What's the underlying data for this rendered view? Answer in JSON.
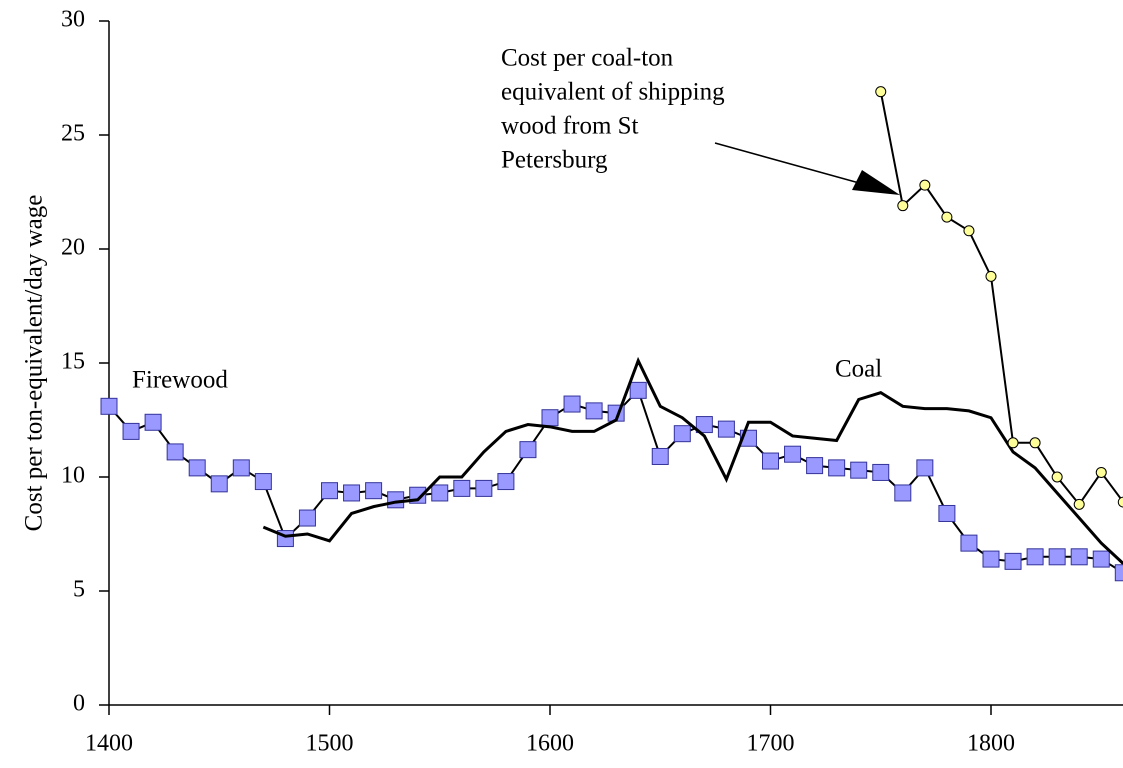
{
  "chart_data": {
    "type": "line",
    "y_label": "Cost per ton-equivalent/day wage",
    "xlim": [
      1400,
      1860
    ],
    "xticks": [
      1400,
      1500,
      1600,
      1700,
      1800
    ],
    "ylim": [
      0,
      30
    ],
    "yticks": [
      0,
      5,
      10,
      15,
      20,
      25,
      30
    ],
    "grid": false,
    "series": [
      {
        "name": "Firewood",
        "color": "#9999ff",
        "marker": "square",
        "x": [
          1400,
          1410,
          1420,
          1430,
          1440,
          1450,
          1460,
          1470,
          1480,
          1490,
          1500,
          1510,
          1520,
          1530,
          1540,
          1550,
          1560,
          1570,
          1580,
          1590,
          1600,
          1610,
          1620,
          1630,
          1640,
          1650,
          1660,
          1670,
          1680,
          1690,
          1700,
          1710,
          1720,
          1730,
          1740,
          1750,
          1760,
          1770,
          1780,
          1790,
          1800,
          1810,
          1820,
          1830,
          1840,
          1850,
          1860
        ],
        "values": [
          13.1,
          12.0,
          12.4,
          11.1,
          10.4,
          9.7,
          10.4,
          9.8,
          7.3,
          8.2,
          9.4,
          9.3,
          9.4,
          9.0,
          9.2,
          9.3,
          9.5,
          9.5,
          9.8,
          11.2,
          12.6,
          13.2,
          12.9,
          12.8,
          13.8,
          10.9,
          11.9,
          12.3,
          12.1,
          11.7,
          10.7,
          11.0,
          10.5,
          10.4,
          10.3,
          10.2,
          9.3,
          10.4,
          8.4,
          7.1,
          6.4,
          6.3,
          6.5,
          6.5,
          6.5,
          6.4,
          5.8
        ]
      },
      {
        "name": "Coal",
        "color": "#000000",
        "marker": "none",
        "x": [
          1470,
          1480,
          1490,
          1500,
          1510,
          1520,
          1530,
          1540,
          1550,
          1560,
          1570,
          1580,
          1590,
          1600,
          1610,
          1620,
          1630,
          1640,
          1650,
          1660,
          1670,
          1680,
          1690,
          1700,
          1710,
          1720,
          1730,
          1740,
          1750,
          1760,
          1770,
          1780,
          1790,
          1800,
          1810,
          1820,
          1830,
          1840,
          1850,
          1860
        ],
        "values": [
          7.8,
          7.4,
          7.5,
          7.2,
          8.4,
          8.7,
          8.9,
          9.0,
          10.0,
          10.0,
          11.1,
          12.0,
          12.3,
          12.2,
          12.0,
          12.0,
          12.5,
          15.1,
          13.1,
          12.6,
          11.8,
          9.9,
          12.4,
          12.4,
          11.8,
          11.7,
          11.6,
          13.4,
          13.7,
          13.1,
          13.0,
          13.0,
          12.9,
          12.6,
          11.1,
          10.4,
          9.3,
          8.2,
          7.1,
          6.2
        ]
      },
      {
        "color": "#ffff99",
        "marker": "circle",
        "x": [
          1750,
          1760,
          1770,
          1780,
          1790,
          1800,
          1810,
          1820,
          1830,
          1840,
          1850,
          1860
        ],
        "values": [
          26.9,
          21.9,
          22.8,
          21.4,
          20.8,
          18.8,
          11.5,
          11.5,
          10.0,
          8.8,
          10.2,
          8.9
        ]
      }
    ],
    "annotation": [
      "Cost per coal-ton",
      "equivalent of shipping",
      "wood from St",
      "Petersburg"
    ]
  }
}
